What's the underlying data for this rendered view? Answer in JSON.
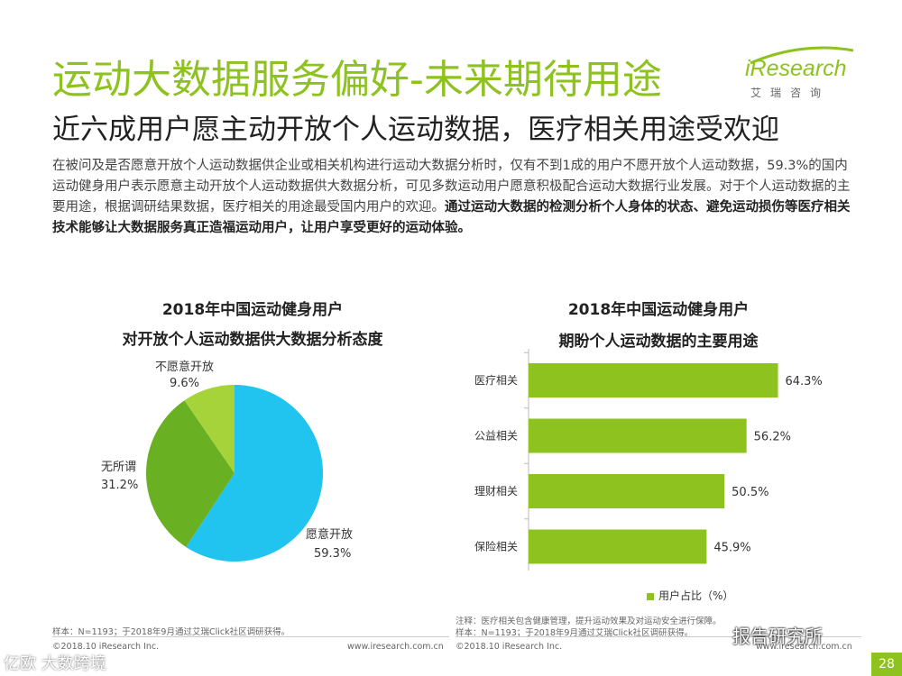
{
  "header": {
    "title": "运动大数据服务偏好-未来期待用途",
    "subtitle": "近六成用户愿主动开放个人运动数据，医疗相关用途受欢迎",
    "logo_text": "iResearch",
    "logo_cn": "艾瑞咨询"
  },
  "description": {
    "normal": "在被问及是否愿意开放个人运动数据供企业或相关机构进行运动大数据分析时，仅有不到1成的用户不愿开放个人运动数据，59.3%的国内运动健身用户表示愿意主动开放个人运动数据供大数据分析，可见多数运动用户愿意积极配合运动大数据行业发展。对于个人运动数据的主要用途，根据调研结果数据，医疗相关的用途最受国内用户的欢迎。",
    "bold": "通过运动大数据的检测分析个人身体的状态、避免运动损伤等医疗相关技术能够让大数据服务真正造福运动用户，让用户享受更好的运动体验。"
  },
  "chart_data": [
    {
      "type": "pie",
      "title": "2018年中国运动健身用户",
      "subtitle": "对开放个人运动数据供大数据分析态度",
      "slices": [
        {
          "label": "愿意开放",
          "value": 59.3,
          "display": "59.3%",
          "color": "#21c4ee"
        },
        {
          "label": "无所谓",
          "value": 31.2,
          "display": "31.2%",
          "color": "#6ab023"
        },
        {
          "label": "不愿意开放",
          "value": 9.6,
          "display": "9.6%",
          "color": "#a6d23a"
        }
      ]
    },
    {
      "type": "bar",
      "orientation": "horizontal",
      "title": "2018年中国运动健身用户",
      "subtitle": "期盼个人运动数据的主要用途",
      "categories": [
        "医疗相关",
        "公益相关",
        "理财相关",
        "保险相关"
      ],
      "values": [
        64.3,
        56.2,
        50.5,
        45.9
      ],
      "labels": [
        "64.3%",
        "56.2%",
        "50.5%",
        "45.9%"
      ],
      "series_name": "用户占比（%）",
      "color": "#8dc21f",
      "xlim": [
        0,
        100
      ],
      "grid": false,
      "legend_position": "bottom-center"
    }
  ],
  "footer": {
    "left_sample": "样本：N=1193；于2018年9月通过艾瑞Click社区调研获得。",
    "left_copyright": "©2018.10 iResearch Inc.",
    "left_url": "www.iresearch.com.cn",
    "right_note": "注释：医疗相关包含健康管理，提升运动效果及对运动安全进行保障。",
    "right_sample": "样本：N=1193；于2018年9月通过艾瑞Click社区调研获得。",
    "right_copyright": "©2018.10 iResearch Inc.",
    "right_url": "www.iresearch.com.cn",
    "page": "28"
  },
  "watermarks": {
    "right": "报告研究所",
    "left": "亿欧 大数跨境"
  },
  "colors": {
    "accent": "#8dc21f",
    "pie_blue": "#21c4ee",
    "pie_green": "#6ab023",
    "pie_light": "#a6d23a"
  }
}
